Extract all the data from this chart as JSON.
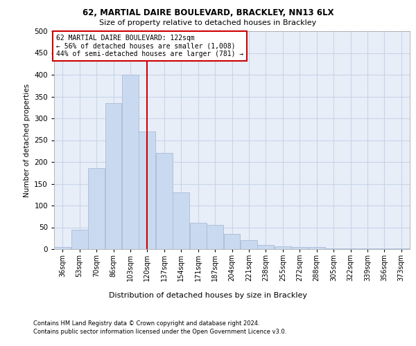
{
  "title1": "62, MARTIAL DAIRE BOULEVARD, BRACKLEY, NN13 6LX",
  "title2": "Size of property relative to detached houses in Brackley",
  "xlabel": "Distribution of detached houses by size in Brackley",
  "ylabel": "Number of detached properties",
  "footnote1": "Contains HM Land Registry data © Crown copyright and database right 2024.",
  "footnote2": "Contains public sector information licensed under the Open Government Licence v3.0.",
  "annotation_title": "62 MARTIAL DAIRE BOULEVARD: 122sqm",
  "annotation_line1": "← 56% of detached houses are smaller (1,008)",
  "annotation_line2": "44% of semi-detached houses are larger (781) →",
  "bar_color": "#c9d9ef",
  "bar_edge_color": "#a8bcd8",
  "grid_color": "#c8d4e8",
  "marker_line_color": "#cc0000",
  "marker_value": 5,
  "categories": [
    "36sqm",
    "53sqm",
    "70sqm",
    "86sqm",
    "103sqm",
    "120sqm",
    "137sqm",
    "154sqm",
    "171sqm",
    "187sqm",
    "204sqm",
    "221sqm",
    "238sqm",
    "255sqm",
    "272sqm",
    "288sqm",
    "305sqm",
    "322sqm",
    "339sqm",
    "356sqm",
    "373sqm"
  ],
  "values": [
    5,
    45,
    185,
    335,
    400,
    270,
    220,
    130,
    60,
    55,
    35,
    20,
    10,
    7,
    5,
    4,
    2,
    2,
    1,
    1,
    1
  ],
  "n_bars": 21,
  "marker_bar_index": 5,
  "ylim": [
    0,
    500
  ],
  "yticks": [
    0,
    50,
    100,
    150,
    200,
    250,
    300,
    350,
    400,
    450,
    500
  ],
  "background_color": "#e8eef8",
  "fig_width": 6.0,
  "fig_height": 5.0,
  "fig_dpi": 100
}
